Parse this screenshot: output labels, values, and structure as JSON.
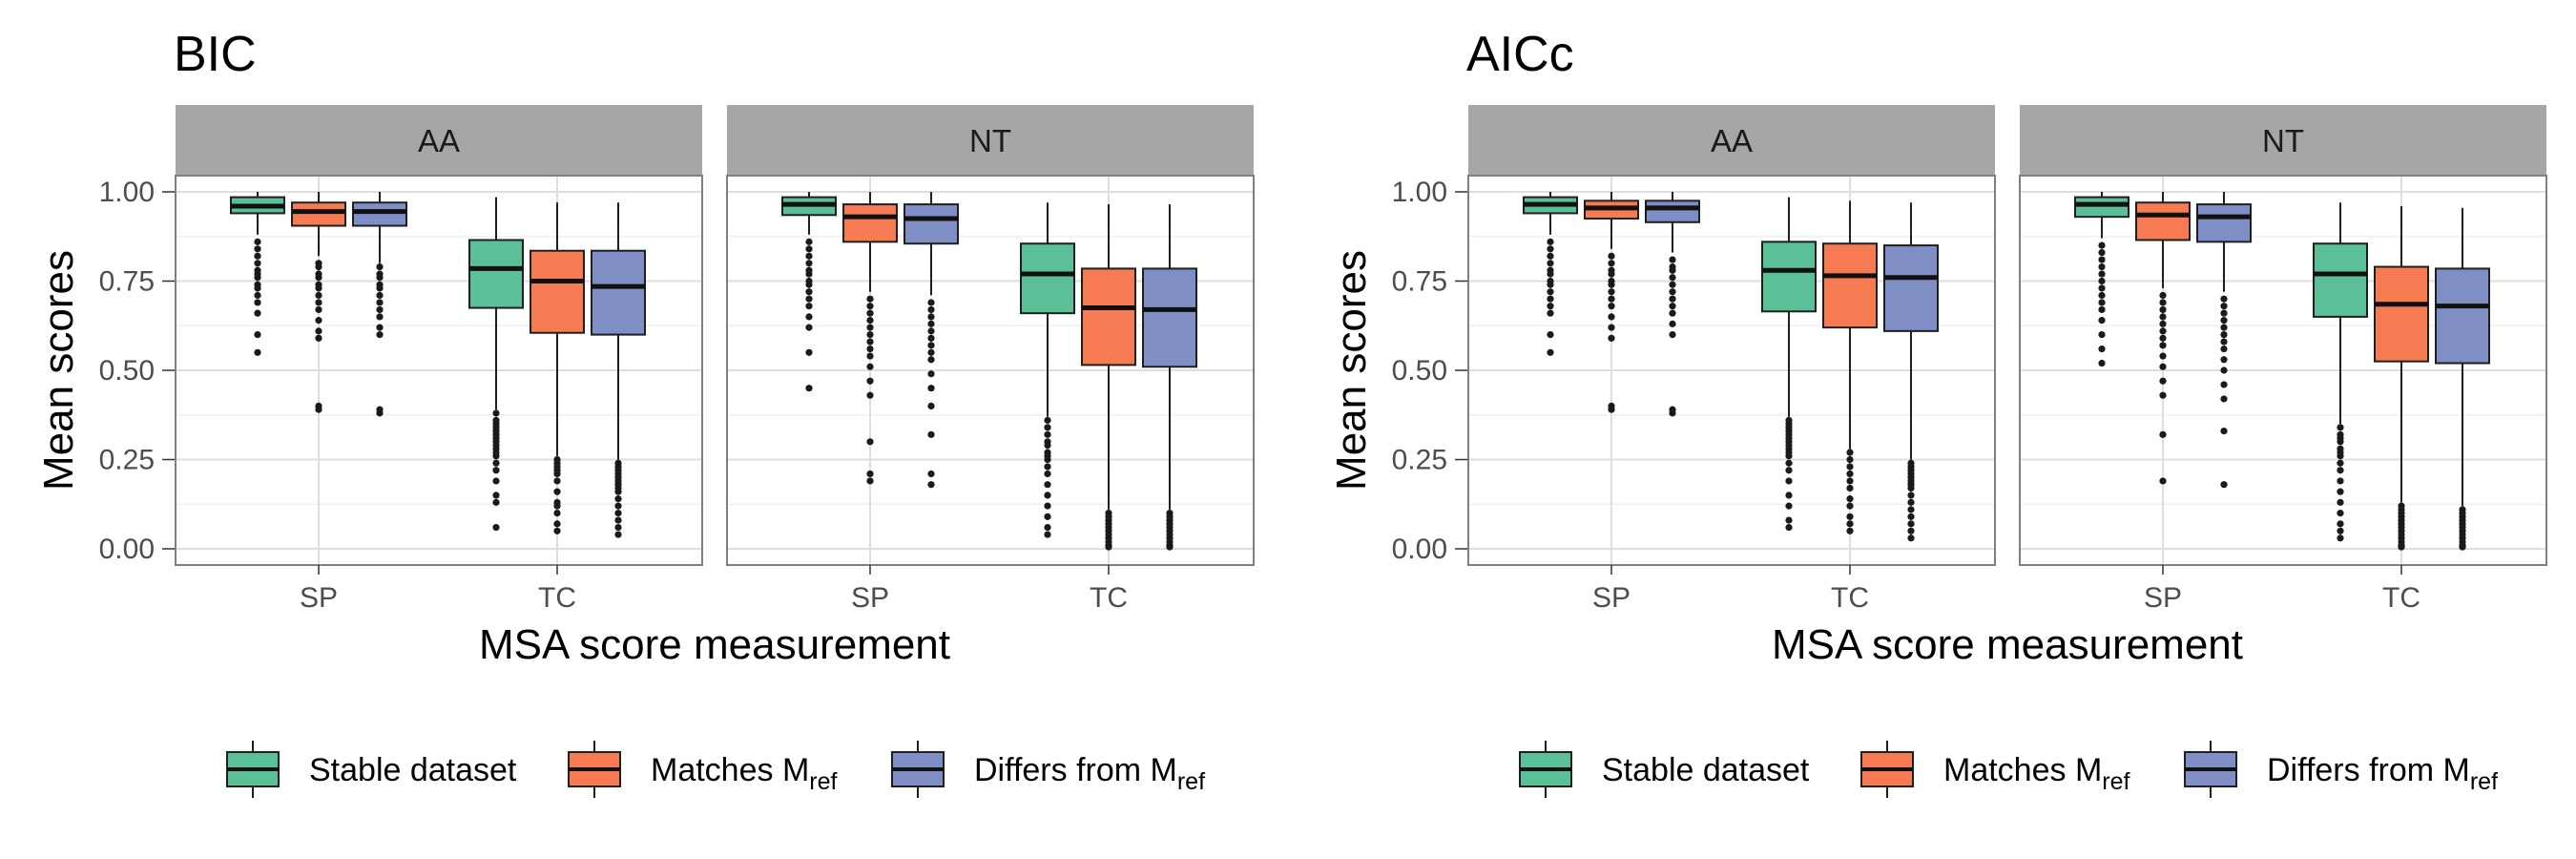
{
  "chart_data": [
    {
      "type": "box",
      "title": "BIC",
      "ylabel": "Mean scores",
      "xlabel": "MSA score measurement",
      "ylim": [
        0,
        1
      ],
      "yticks": [
        "0.00",
        "0.25",
        "0.50",
        "0.75",
        "1.00"
      ],
      "categories": [
        "SP",
        "TC"
      ],
      "facets": [
        {
          "label": "AA",
          "groups": [
            {
              "category": "SP",
              "series": "stable",
              "whisker_low": 0.88,
              "q1": 0.94,
              "median": 0.96,
              "q3": 0.985,
              "whisker_high": 1.0,
              "outliers": [
                0.86,
                0.84,
                0.82,
                0.8,
                0.78,
                0.77,
                0.76,
                0.74,
                0.73,
                0.71,
                0.69,
                0.66,
                0.6,
                0.55
              ]
            },
            {
              "category": "SP",
              "series": "matches",
              "whisker_low": 0.82,
              "q1": 0.905,
              "median": 0.945,
              "q3": 0.97,
              "whisker_high": 1.0,
              "outliers": [
                0.8,
                0.79,
                0.77,
                0.76,
                0.74,
                0.73,
                0.71,
                0.69,
                0.67,
                0.64,
                0.61,
                0.59,
                0.4,
                0.39
              ]
            },
            {
              "category": "SP",
              "series": "differs",
              "whisker_low": 0.8,
              "q1": 0.905,
              "median": 0.945,
              "q3": 0.97,
              "whisker_high": 1.0,
              "outliers": [
                0.79,
                0.77,
                0.76,
                0.74,
                0.73,
                0.71,
                0.69,
                0.67,
                0.65,
                0.62,
                0.6,
                0.39,
                0.38
              ]
            },
            {
              "category": "TC",
              "series": "stable",
              "whisker_low": 0.39,
              "q1": 0.675,
              "median": 0.785,
              "q3": 0.865,
              "whisker_high": 0.985,
              "outliers": [
                0.38,
                0.36,
                0.35,
                0.34,
                0.33,
                0.32,
                0.31,
                0.3,
                0.29,
                0.28,
                0.27,
                0.26,
                0.24,
                0.22,
                0.19,
                0.15,
                0.13,
                0.06
              ]
            },
            {
              "category": "TC",
              "series": "matches",
              "whisker_low": 0.26,
              "q1": 0.605,
              "median": 0.75,
              "q3": 0.835,
              "whisker_high": 0.97,
              "outliers": [
                0.25,
                0.24,
                0.23,
                0.22,
                0.21,
                0.19,
                0.16,
                0.13,
                0.12,
                0.1,
                0.07,
                0.05
              ]
            },
            {
              "category": "TC",
              "series": "differs",
              "whisker_low": 0.25,
              "q1": 0.6,
              "median": 0.735,
              "q3": 0.835,
              "whisker_high": 0.97,
              "outliers": [
                0.24,
                0.23,
                0.22,
                0.21,
                0.2,
                0.19,
                0.18,
                0.17,
                0.16,
                0.14,
                0.12,
                0.1,
                0.08,
                0.06,
                0.04
              ]
            }
          ]
        },
        {
          "label": "NT",
          "groups": [
            {
              "category": "SP",
              "series": "stable",
              "whisker_low": 0.88,
              "q1": 0.935,
              "median": 0.965,
              "q3": 0.985,
              "whisker_high": 1.0,
              "outliers": [
                0.86,
                0.84,
                0.82,
                0.8,
                0.78,
                0.77,
                0.75,
                0.74,
                0.72,
                0.7,
                0.68,
                0.65,
                0.62,
                0.55,
                0.45
              ]
            },
            {
              "category": "SP",
              "series": "matches",
              "whisker_low": 0.72,
              "q1": 0.86,
              "median": 0.93,
              "q3": 0.965,
              "whisker_high": 1.0,
              "outliers": [
                0.7,
                0.68,
                0.66,
                0.64,
                0.62,
                0.6,
                0.58,
                0.56,
                0.54,
                0.51,
                0.47,
                0.43,
                0.3,
                0.21,
                0.19
              ]
            },
            {
              "category": "SP",
              "series": "differs",
              "whisker_low": 0.71,
              "q1": 0.855,
              "median": 0.925,
              "q3": 0.965,
              "whisker_high": 1.0,
              "outliers": [
                0.69,
                0.67,
                0.65,
                0.63,
                0.61,
                0.59,
                0.57,
                0.55,
                0.53,
                0.49,
                0.45,
                0.4,
                0.32,
                0.21,
                0.18
              ]
            },
            {
              "category": "TC",
              "series": "stable",
              "whisker_low": 0.37,
              "q1": 0.66,
              "median": 0.77,
              "q3": 0.855,
              "whisker_high": 0.97,
              "outliers": [
                0.36,
                0.34,
                0.32,
                0.3,
                0.29,
                0.27,
                0.26,
                0.25,
                0.23,
                0.21,
                0.18,
                0.15,
                0.12,
                0.09,
                0.06,
                0.04
              ]
            },
            {
              "category": "TC",
              "series": "matches",
              "whisker_low": 0.11,
              "q1": 0.515,
              "median": 0.675,
              "q3": 0.785,
              "whisker_high": 0.965,
              "outliers": [
                0.1,
                0.09,
                0.08,
                0.07,
                0.06,
                0.05,
                0.04,
                0.03,
                0.02,
                0.01,
                0.005
              ]
            },
            {
              "category": "TC",
              "series": "differs",
              "whisker_low": 0.11,
              "q1": 0.51,
              "median": 0.67,
              "q3": 0.785,
              "whisker_high": 0.965,
              "outliers": [
                0.1,
                0.09,
                0.08,
                0.07,
                0.06,
                0.05,
                0.04,
                0.03,
                0.02,
                0.01,
                0.005
              ]
            }
          ]
        }
      ]
    },
    {
      "type": "box",
      "title": "AICc",
      "ylabel": "Mean scores",
      "xlabel": "MSA score measurement",
      "ylim": [
        0,
        1
      ],
      "yticks": [
        "0.00",
        "0.25",
        "0.50",
        "0.75",
        "1.00"
      ],
      "categories": [
        "SP",
        "TC"
      ],
      "facets": [
        {
          "label": "AA",
          "groups": [
            {
              "category": "SP",
              "series": "stable",
              "whisker_low": 0.88,
              "q1": 0.94,
              "median": 0.965,
              "q3": 0.985,
              "whisker_high": 1.0,
              "outliers": [
                0.86,
                0.84,
                0.82,
                0.8,
                0.78,
                0.77,
                0.75,
                0.74,
                0.72,
                0.7,
                0.68,
                0.66,
                0.6,
                0.55
              ]
            },
            {
              "category": "SP",
              "series": "matches",
              "whisker_low": 0.84,
              "q1": 0.925,
              "median": 0.955,
              "q3": 0.975,
              "whisker_high": 1.0,
              "outliers": [
                0.82,
                0.8,
                0.78,
                0.77,
                0.75,
                0.74,
                0.72,
                0.7,
                0.68,
                0.65,
                0.62,
                0.59,
                0.4,
                0.39
              ]
            },
            {
              "category": "SP",
              "series": "differs",
              "whisker_low": 0.83,
              "q1": 0.915,
              "median": 0.955,
              "q3": 0.975,
              "whisker_high": 1.0,
              "outliers": [
                0.81,
                0.79,
                0.78,
                0.76,
                0.74,
                0.72,
                0.7,
                0.68,
                0.66,
                0.63,
                0.6,
                0.39,
                0.38
              ]
            },
            {
              "category": "TC",
              "series": "stable",
              "whisker_low": 0.37,
              "q1": 0.665,
              "median": 0.78,
              "q3": 0.86,
              "whisker_high": 0.985,
              "outliers": [
                0.36,
                0.35,
                0.34,
                0.33,
                0.32,
                0.31,
                0.3,
                0.29,
                0.28,
                0.27,
                0.26,
                0.24,
                0.22,
                0.19,
                0.15,
                0.12,
                0.08,
                0.06
              ]
            },
            {
              "category": "TC",
              "series": "matches",
              "whisker_low": 0.28,
              "q1": 0.62,
              "median": 0.765,
              "q3": 0.855,
              "whisker_high": 0.975,
              "outliers": [
                0.27,
                0.25,
                0.23,
                0.21,
                0.19,
                0.17,
                0.14,
                0.12,
                0.09,
                0.07,
                0.05
              ]
            },
            {
              "category": "TC",
              "series": "differs",
              "whisker_low": 0.25,
              "q1": 0.61,
              "median": 0.76,
              "q3": 0.85,
              "whisker_high": 0.97,
              "outliers": [
                0.24,
                0.23,
                0.22,
                0.21,
                0.2,
                0.19,
                0.18,
                0.17,
                0.15,
                0.13,
                0.11,
                0.09,
                0.07,
                0.05,
                0.03
              ]
            }
          ]
        },
        {
          "label": "NT",
          "groups": [
            {
              "category": "SP",
              "series": "stable",
              "whisker_low": 0.87,
              "q1": 0.93,
              "median": 0.965,
              "q3": 0.985,
              "whisker_high": 1.0,
              "outliers": [
                0.85,
                0.83,
                0.81,
                0.79,
                0.77,
                0.75,
                0.73,
                0.71,
                0.69,
                0.67,
                0.64,
                0.6,
                0.56,
                0.52
              ]
            },
            {
              "category": "SP",
              "series": "matches",
              "whisker_low": 0.73,
              "q1": 0.865,
              "median": 0.935,
              "q3": 0.97,
              "whisker_high": 1.0,
              "outliers": [
                0.71,
                0.69,
                0.67,
                0.65,
                0.63,
                0.61,
                0.59,
                0.57,
                0.54,
                0.51,
                0.47,
                0.43,
                0.32,
                0.19
              ]
            },
            {
              "category": "SP",
              "series": "differs",
              "whisker_low": 0.72,
              "q1": 0.86,
              "median": 0.93,
              "q3": 0.965,
              "whisker_high": 1.0,
              "outliers": [
                0.7,
                0.68,
                0.66,
                0.64,
                0.62,
                0.6,
                0.58,
                0.56,
                0.53,
                0.5,
                0.46,
                0.42,
                0.33,
                0.18
              ]
            },
            {
              "category": "TC",
              "series": "stable",
              "whisker_low": 0.35,
              "q1": 0.65,
              "median": 0.77,
              "q3": 0.855,
              "whisker_high": 0.97,
              "outliers": [
                0.34,
                0.32,
                0.31,
                0.3,
                0.28,
                0.27,
                0.26,
                0.24,
                0.22,
                0.19,
                0.16,
                0.13,
                0.1,
                0.07,
                0.05,
                0.03
              ]
            },
            {
              "category": "TC",
              "series": "matches",
              "whisker_low": 0.13,
              "q1": 0.525,
              "median": 0.685,
              "q3": 0.79,
              "whisker_high": 0.96,
              "outliers": [
                0.12,
                0.11,
                0.1,
                0.09,
                0.08,
                0.07,
                0.06,
                0.05,
                0.04,
                0.03,
                0.02,
                0.01,
                0.005
              ]
            },
            {
              "category": "TC",
              "series": "differs",
              "whisker_low": 0.12,
              "q1": 0.52,
              "median": 0.68,
              "q3": 0.785,
              "whisker_high": 0.955,
              "outliers": [
                0.11,
                0.1,
                0.09,
                0.08,
                0.07,
                0.06,
                0.05,
                0.04,
                0.03,
                0.02,
                0.01,
                0.005
              ]
            }
          ]
        }
      ]
    }
  ],
  "legend": {
    "items": [
      {
        "key": "stable",
        "label": "Stable dataset",
        "sub": "",
        "color": "#5bbf97"
      },
      {
        "key": "matches",
        "label": "Matches M",
        "sub": "ref",
        "color": "#f77b52"
      },
      {
        "key": "differs",
        "label": "Differs from M",
        "sub": "ref",
        "color": "#7f8ec4"
      }
    ]
  },
  "colors": {
    "strip_background": "#a6a6a6",
    "panel_border": "#7f7f7f",
    "grid_major": "#dedede",
    "grid_minor": "#efefef",
    "box_outline": "#1f1f1f"
  }
}
